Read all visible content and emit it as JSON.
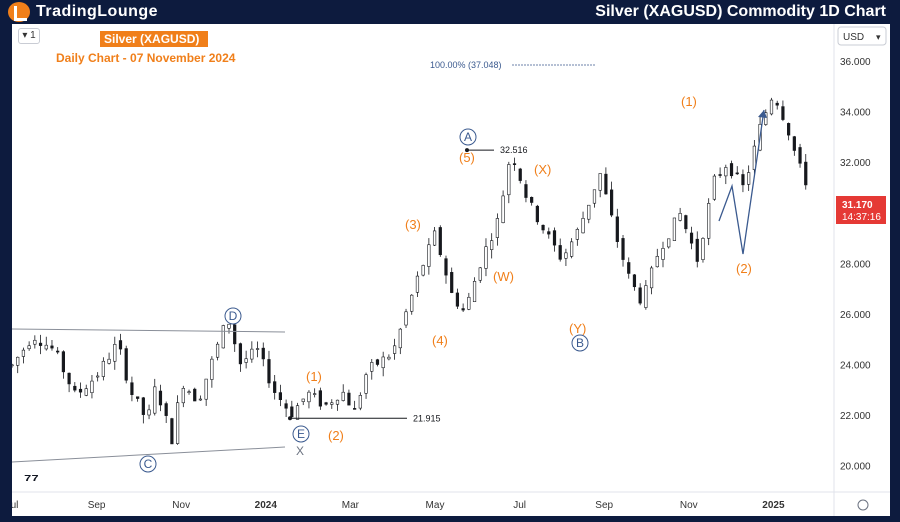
{
  "header": {
    "brand": "TradingLounge",
    "title": "Silver (XAGUSD) Commodity 1D Chart"
  },
  "panel": {
    "interval_label": "1",
    "currency": "USD"
  },
  "chart_data": {
    "type": "candlestick",
    "title": "Silver (XAGUSD)",
    "subtitle": "Daily Chart - 07 November 2024",
    "ylim": [
      19.0,
      37.5
    ],
    "y_ticks": [
      "20.000",
      "22.000",
      "24.000",
      "26.000",
      "28.000",
      "30.000",
      "32.000",
      "34.000",
      "36.000"
    ],
    "y_tick_values": [
      20,
      22,
      24,
      26,
      28,
      30,
      32,
      34,
      36
    ],
    "x_ticks": [
      {
        "label": "Jul",
        "month": 0
      },
      {
        "label": "Sep",
        "month": 2
      },
      {
        "label": "Nov",
        "month": 4
      },
      {
        "label": "2024",
        "month": 6
      },
      {
        "label": "Mar",
        "month": 8
      },
      {
        "label": "May",
        "month": 10
      },
      {
        "label": "Jul",
        "month": 12
      },
      {
        "label": "Sep",
        "month": 14
      },
      {
        "label": "Nov",
        "month": 16
      },
      {
        "label": "2025",
        "month": 18
      }
    ],
    "price_path": [
      [
        0.0,
        24.0
      ],
      [
        0.5,
        25.2
      ],
      [
        1.0,
        24.6
      ],
      [
        1.5,
        22.8
      ],
      [
        2.0,
        23.6
      ],
      [
        2.5,
        24.9
      ],
      [
        2.8,
        23.0
      ],
      [
        3.2,
        21.8
      ],
      [
        3.4,
        23.2
      ],
      [
        3.8,
        21.0
      ],
      [
        4.0,
        23.4
      ],
      [
        4.4,
        22.6
      ],
      [
        4.8,
        24.5
      ],
      [
        5.1,
        25.9
      ],
      [
        5.4,
        24.1
      ],
      [
        5.8,
        24.6
      ],
      [
        6.2,
        23.0
      ],
      [
        6.6,
        22.1
      ],
      [
        7.0,
        22.9
      ],
      [
        7.4,
        22.4
      ],
      [
        7.8,
        23.0
      ],
      [
        8.1,
        22.2
      ],
      [
        8.4,
        23.8
      ],
      [
        9.0,
        24.5
      ],
      [
        9.6,
        27.5
      ],
      [
        10.0,
        29.2
      ],
      [
        10.4,
        26.8
      ],
      [
        10.7,
        26.1
      ],
      [
        11.1,
        28.2
      ],
      [
        11.5,
        29.8
      ],
      [
        11.8,
        32.5
      ],
      [
        12.2,
        30.5
      ],
      [
        12.6,
        29.3
      ],
      [
        13.0,
        28.2
      ],
      [
        13.4,
        29.4
      ],
      [
        13.9,
        31.6
      ],
      [
        14.3,
        29.0
      ],
      [
        14.6,
        27.4
      ],
      [
        14.9,
        26.5
      ],
      [
        15.3,
        28.6
      ],
      [
        15.8,
        30.0
      ],
      [
        16.2,
        28.2
      ],
      [
        16.6,
        31.3
      ],
      [
        16.9,
        32.0
      ],
      [
        17.3,
        31.0
      ],
      [
        17.7,
        33.5
      ],
      [
        18.0,
        34.8
      ],
      [
        18.3,
        33.6
      ],
      [
        18.6,
        31.9
      ],
      [
        18.8,
        31.17
      ]
    ],
    "last_price": "31.170",
    "countdown": "14:37:16",
    "fib_label": "100.00% (37.048)",
    "price_levels": [
      {
        "label": "32.516",
        "value": 32.516
      },
      {
        "label": "21.915",
        "value": 21.915
      }
    ],
    "wave_labels": {
      "orange": [
        "(1)",
        "(2)",
        "(3)",
        "(4)",
        "(5)",
        "(X)",
        "(W)",
        "(Y)",
        "(1)",
        "(2)"
      ],
      "circled": [
        "A",
        "B",
        "C",
        "D",
        "E"
      ],
      "plain": [
        "X"
      ]
    },
    "colors": {
      "up": "#16181d",
      "down": "#16181d",
      "wave_orange": "#f07f1a",
      "projection": "#3b5a8f",
      "last_price_bg": "#e53935",
      "panel_bg": "#ffffff",
      "header_bg": "#0d1b3e"
    }
  }
}
